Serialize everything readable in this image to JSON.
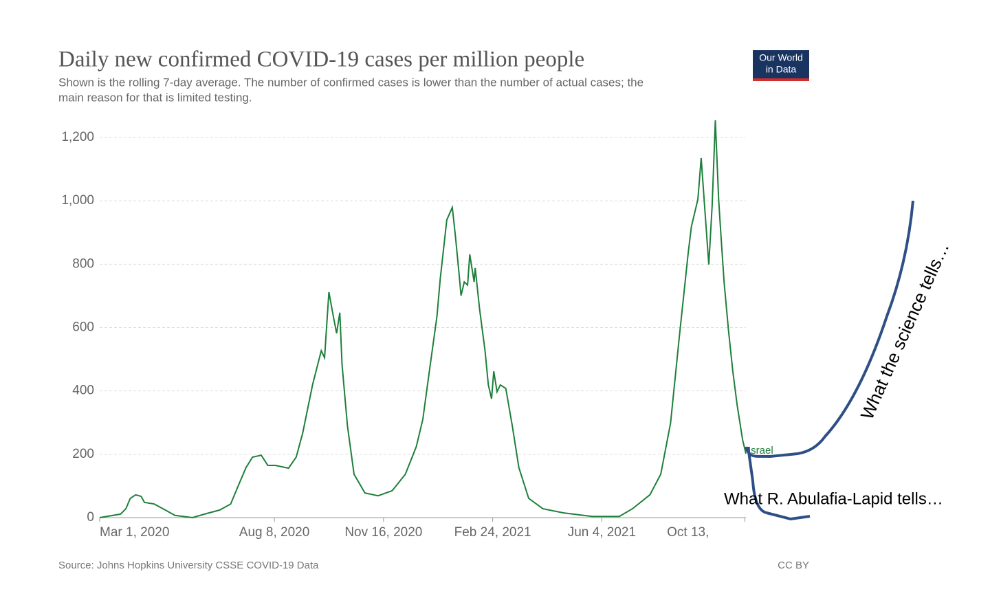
{
  "chart_data": {
    "type": "line",
    "title": "Daily new confirmed COVID-19 cases per million people",
    "subtitle_lines": [
      "Shown is the rolling 7-day average. The number of confirmed cases is lower than the number of actual cases; the",
      "main reason for that is limited testing."
    ],
    "logo": [
      "Our World",
      "in Data"
    ],
    "source": "Source: Johns Hopkins University CSSE COVID-19 Data",
    "license": "CC BY",
    "annotations": [
      "What the science tells…",
      "What R. Abulafia-Lapid tells…"
    ],
    "x": [
      "2020-03-01",
      "2020-03-20",
      "2020-03-25",
      "2020-03-29",
      "2020-04-03",
      "2020-04-08",
      "2020-04-11",
      "2020-04-20",
      "2020-04-30",
      "2020-05-09",
      "2020-05-25",
      "2020-06-07",
      "2020-06-19",
      "2020-06-29",
      "2020-07-05",
      "2020-07-13",
      "2020-07-19",
      "2020-07-27",
      "2020-08-02",
      "2020-08-09",
      "2020-08-21",
      "2020-08-28",
      "2020-09-03",
      "2020-09-12",
      "2020-09-20",
      "2020-09-23",
      "2020-09-27",
      "2020-10-01",
      "2020-10-04",
      "2020-10-07",
      "2020-10-09",
      "2020-10-14",
      "2020-10-20",
      "2020-10-30",
      "2020-11-11",
      "2020-11-24",
      "2020-12-06",
      "2020-12-16",
      "2020-12-22",
      "2020-12-28",
      "2021-01-04",
      "2021-01-07",
      "2021-01-13",
      "2021-01-18",
      "2021-01-21",
      "2021-01-24",
      "2021-01-26",
      "2021-01-29",
      "2021-02-01",
      "2021-02-03",
      "2021-02-07",
      "2021-02-08",
      "2021-02-12",
      "2021-02-17",
      "2021-02-20",
      "2021-02-23",
      "2021-02-25",
      "2021-02-28",
      "2021-03-03",
      "2021-03-08",
      "2021-03-14",
      "2021-03-20",
      "2021-03-29",
      "2021-04-11",
      "2021-04-30",
      "2021-05-26",
      "2021-06-20",
      "2021-07-02",
      "2021-07-18",
      "2021-07-28",
      "2021-08-06",
      "2021-08-14",
      "2021-08-22",
      "2021-08-25",
      "2021-08-31",
      "2021-09-03",
      "2021-09-07",
      "2021-09-10",
      "2021-09-13",
      "2021-09-16",
      "2021-09-19",
      "2021-09-21",
      "2021-09-24",
      "2021-09-28",
      "2021-10-02",
      "2021-10-06",
      "2021-10-11",
      "2021-10-14"
    ],
    "series": [
      {
        "name": "Israel",
        "color": "#1d7f3a",
        "values": [
          0,
          11,
          28,
          61,
          72,
          67,
          48,
          43,
          24,
          7,
          0,
          13,
          24,
          43,
          93,
          158,
          191,
          197,
          165,
          165,
          156,
          191,
          267,
          419,
          527,
          505,
          712,
          636,
          582,
          647,
          484,
          289,
          137,
          78,
          69,
          85,
          137,
          224,
          310,
          462,
          636,
          755,
          940,
          979,
          885,
          777,
          701,
          744,
          734,
          831,
          744,
          788,
          658,
          527,
          419,
          375,
          462,
          397,
          419,
          408,
          289,
          158,
          61,
          28,
          15,
          4,
          4,
          28,
          72,
          137,
          299,
          571,
          831,
          918,
          1005,
          1135,
          940,
          799,
          983,
          1254,
          1005,
          896,
          744,
          592,
          462,
          354,
          245,
          202
        ]
      }
    ],
    "xlim": [
      "2020-03-01",
      "2021-10-14"
    ],
    "xticks": [
      {
        "value": "2020-03-01",
        "label": "Mar 1, 2020"
      },
      {
        "value": "2020-08-08",
        "label": "Aug 8, 2020"
      },
      {
        "value": "2020-11-16",
        "label": "Nov 16, 2020"
      },
      {
        "value": "2021-02-24",
        "label": "Feb 24, 2021"
      },
      {
        "value": "2021-06-04",
        "label": "Jun 4, 2021"
      },
      {
        "value": "2021-10-13",
        "label": "Oct 13,"
      }
    ],
    "ylim": [
      0,
      1200
    ],
    "yticks": [
      0,
      200,
      400,
      600,
      800,
      {
        "value": 1000,
        "label": "1,000"
      },
      {
        "value": 1200,
        "label": "1,200"
      }
    ],
    "grid": true
  }
}
